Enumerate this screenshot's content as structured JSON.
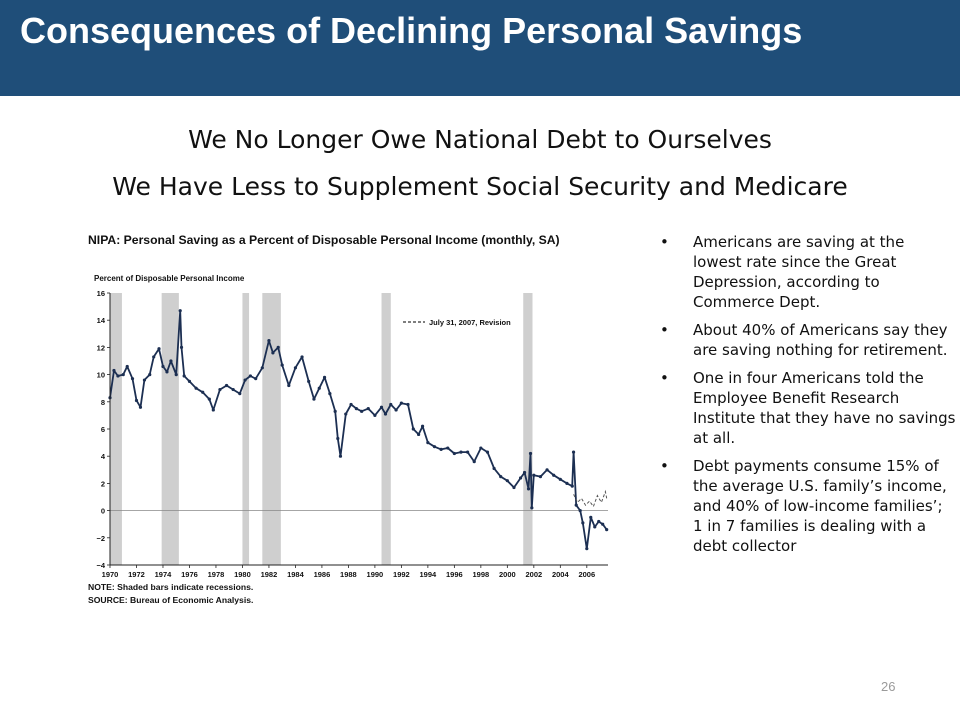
{
  "slide": {
    "title": "Consequences of Declining Personal Savings",
    "subtitle_line1": "We No Longer Owe National Debt to Ourselves",
    "subtitle_line2": "We Have Less to Supplement Social Security and Medicare",
    "page_number": "26",
    "header_color": "#1f4e79"
  },
  "bullets": [
    {
      "marker": "•",
      "text": "Americans are saving at the lowest rate since the Great Depression, according to Commerce Dept."
    },
    {
      "marker": "•",
      "text": "About 40% of Americans say they are saving nothing for retirement."
    },
    {
      "marker": "•",
      "text": "One in four Americans told the Employee Benefit Research Institute that they have no savings at all."
    },
    {
      "marker": "•",
      "text": "Debt payments consume 15% of the average U.S. family’s income, and 40% of low-income families’; 1 in 7 families is dealing with a debt collector"
    }
  ],
  "chart_data": {
    "type": "line",
    "title": "NIPA: Personal Saving as a Percent of Disposable Personal Income (monthly, SA)",
    "ylabel": "Percent of Disposable Personal Income",
    "xlim": [
      1970,
      2007.6
    ],
    "ylim": [
      -4,
      16
    ],
    "y_ticks": [
      "16",
      "14",
      "12",
      "10",
      "8",
      "6",
      "4",
      "2",
      "0",
      "−2",
      "−4"
    ],
    "x_ticks": [
      "1970",
      "1972",
      "1974",
      "1976",
      "1978",
      "1980",
      "1982",
      "1984",
      "1986",
      "1988",
      "1990",
      "1992",
      "1994",
      "1996",
      "1998",
      "2000",
      "2002",
      "2004",
      "2006"
    ],
    "recessions": [
      [
        1970.0,
        1970.9
      ],
      [
        1973.9,
        1975.2
      ],
      [
        1980.0,
        1980.5
      ],
      [
        1981.5,
        1982.9
      ],
      [
        1990.5,
        1991.2
      ],
      [
        2001.2,
        2001.9
      ]
    ],
    "legend": {
      "label": "July 31, 2007, Revision",
      "position": "top-right"
    },
    "note": "NOTE: Shaded bars indicate recessions.",
    "source": "SOURCE: Bureau of Economic Analysis.",
    "series": [
      {
        "style": "dotted",
        "x": [
          1970.0,
          1970.3,
          1970.6,
          1971.0,
          1971.3,
          1971.7,
          1972.0,
          1972.3,
          1972.6,
          1973.0,
          1973.3,
          1973.7,
          1974.0,
          1974.3,
          1974.6,
          1975.0,
          1975.3,
          1975.4,
          1975.6,
          1976.0,
          1976.5,
          1977.0,
          1977.5,
          1977.8,
          1978.3,
          1978.8,
          1979.3,
          1979.8,
          1980.2,
          1980.6,
          1981.0,
          1981.5,
          1982.0,
          1982.3,
          1982.7,
          1983.0,
          1983.5,
          1984.0,
          1984.5,
          1985.0,
          1985.4,
          1985.8,
          1986.2,
          1986.6,
          1987.0,
          1987.2,
          1987.4,
          1987.8,
          1988.2,
          1988.6,
          1989.0,
          1989.5,
          1990.0,
          1990.5,
          1990.8,
          1991.2,
          1991.6,
          1992.0,
          1992.5,
          1992.9,
          1993.3,
          1993.6,
          1994.0,
          1994.5,
          1995.0,
          1995.5,
          1996.0,
          1996.5,
          1997.0,
          1997.5,
          1998.0,
          1998.5,
          1999.0,
          1999.5,
          2000.0,
          2000.5,
          2001.0,
          2001.3,
          2001.6,
          2001.75,
          2001.85,
          2002.0,
          2002.5,
          2003.0,
          2003.5,
          2004.0,
          2004.5,
          2004.9,
          2005.0,
          2005.2,
          2005.5,
          2005.7,
          2006.0,
          2006.3,
          2006.6,
          2006.9,
          2007.2,
          2007.5
        ],
        "y": [
          8.3,
          10.3,
          9.9,
          10.0,
          10.6,
          9.7,
          8.1,
          7.6,
          9.6,
          10.0,
          11.3,
          11.9,
          10.6,
          10.2,
          11.0,
          10.0,
          14.7,
          12.0,
          9.9,
          9.5,
          9.0,
          8.7,
          8.2,
          7.4,
          8.9,
          9.2,
          8.9,
          8.6,
          9.6,
          9.9,
          9.7,
          10.5,
          12.5,
          11.6,
          12.0,
          10.7,
          9.2,
          10.5,
          11.3,
          9.5,
          8.2,
          9.0,
          9.8,
          8.6,
          7.3,
          5.3,
          4.0,
          7.1,
          7.8,
          7.5,
          7.3,
          7.5,
          7.0,
          7.6,
          7.1,
          7.8,
          7.4,
          7.9,
          7.8,
          6.0,
          5.6,
          6.2,
          5.0,
          4.7,
          4.5,
          4.6,
          4.2,
          4.3,
          4.3,
          3.6,
          4.6,
          4.3,
          3.1,
          2.5,
          2.2,
          1.7,
          2.4,
          2.8,
          1.6,
          4.2,
          0.2,
          2.6,
          2.5,
          3.0,
          2.6,
          2.3,
          2.0,
          1.8,
          4.3,
          0.4,
          0.0,
          -0.9,
          -2.8,
          -0.5,
          -1.2,
          -0.8,
          -1.0,
          -1.4
        ]
      },
      {
        "name": "July 31, 2007, Revision",
        "style": "dashed",
        "x": [
          2005.0,
          2005.3,
          2005.6,
          2005.9,
          2006.2,
          2006.5,
          2006.8,
          2007.1,
          2007.4,
          2007.5
        ],
        "y": [
          1.2,
          0.6,
          0.9,
          0.4,
          0.7,
          0.3,
          1.1,
          0.6,
          1.4,
          0.9
        ]
      }
    ]
  }
}
